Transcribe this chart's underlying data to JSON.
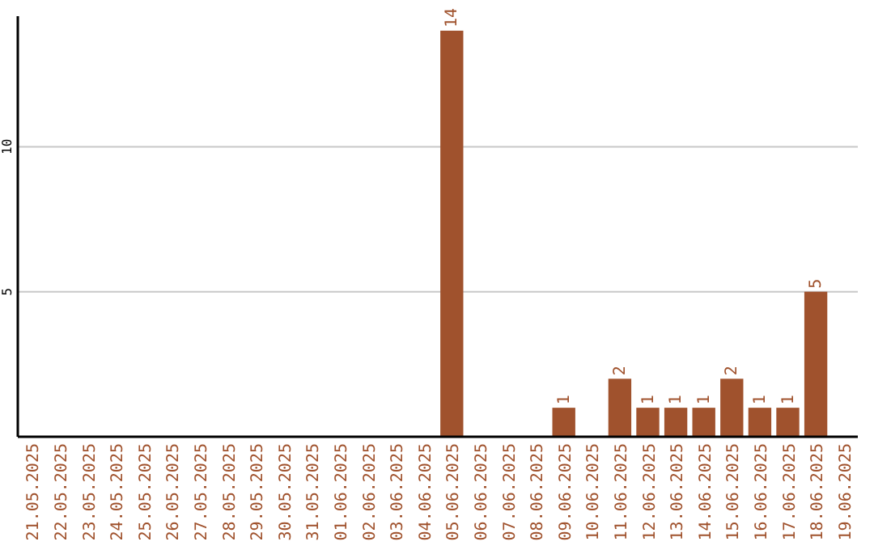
{
  "chart_data": {
    "type": "bar",
    "categories": [
      "21.05.2025",
      "22.05.2025",
      "23.05.2025",
      "24.05.2025",
      "25.05.2025",
      "26.05.2025",
      "27.05.2025",
      "28.05.2025",
      "29.05.2025",
      "30.05.2025",
      "31.05.2025",
      "01.06.2025",
      "02.06.2025",
      "03.06.2025",
      "04.06.2025",
      "05.06.2025",
      "06.06.2025",
      "07.06.2025",
      "08.06.2025",
      "09.06.2025",
      "10.06.2025",
      "11.06.2025",
      "12.06.2025",
      "13.06.2025",
      "14.06.2025",
      "15.06.2025",
      "16.06.2025",
      "17.06.2025",
      "18.06.2025",
      "19.06.2025"
    ],
    "values": [
      0,
      0,
      0,
      0,
      0,
      0,
      0,
      0,
      0,
      0,
      0,
      0,
      0,
      0,
      0,
      14,
      0,
      0,
      0,
      1,
      0,
      2,
      1,
      1,
      1,
      2,
      1,
      1,
      5,
      0
    ],
    "value_labels": [
      null,
      null,
      null,
      null,
      null,
      null,
      null,
      null,
      null,
      null,
      null,
      null,
      null,
      null,
      null,
      "14",
      null,
      null,
      null,
      "1",
      null,
      "2",
      "1",
      "1",
      "1",
      "2",
      "1",
      "1",
      "5",
      null
    ],
    "color": "#a0522d",
    "ylim": [
      0,
      14.5
    ],
    "yticks": [
      5,
      10
    ],
    "grid": "y"
  }
}
